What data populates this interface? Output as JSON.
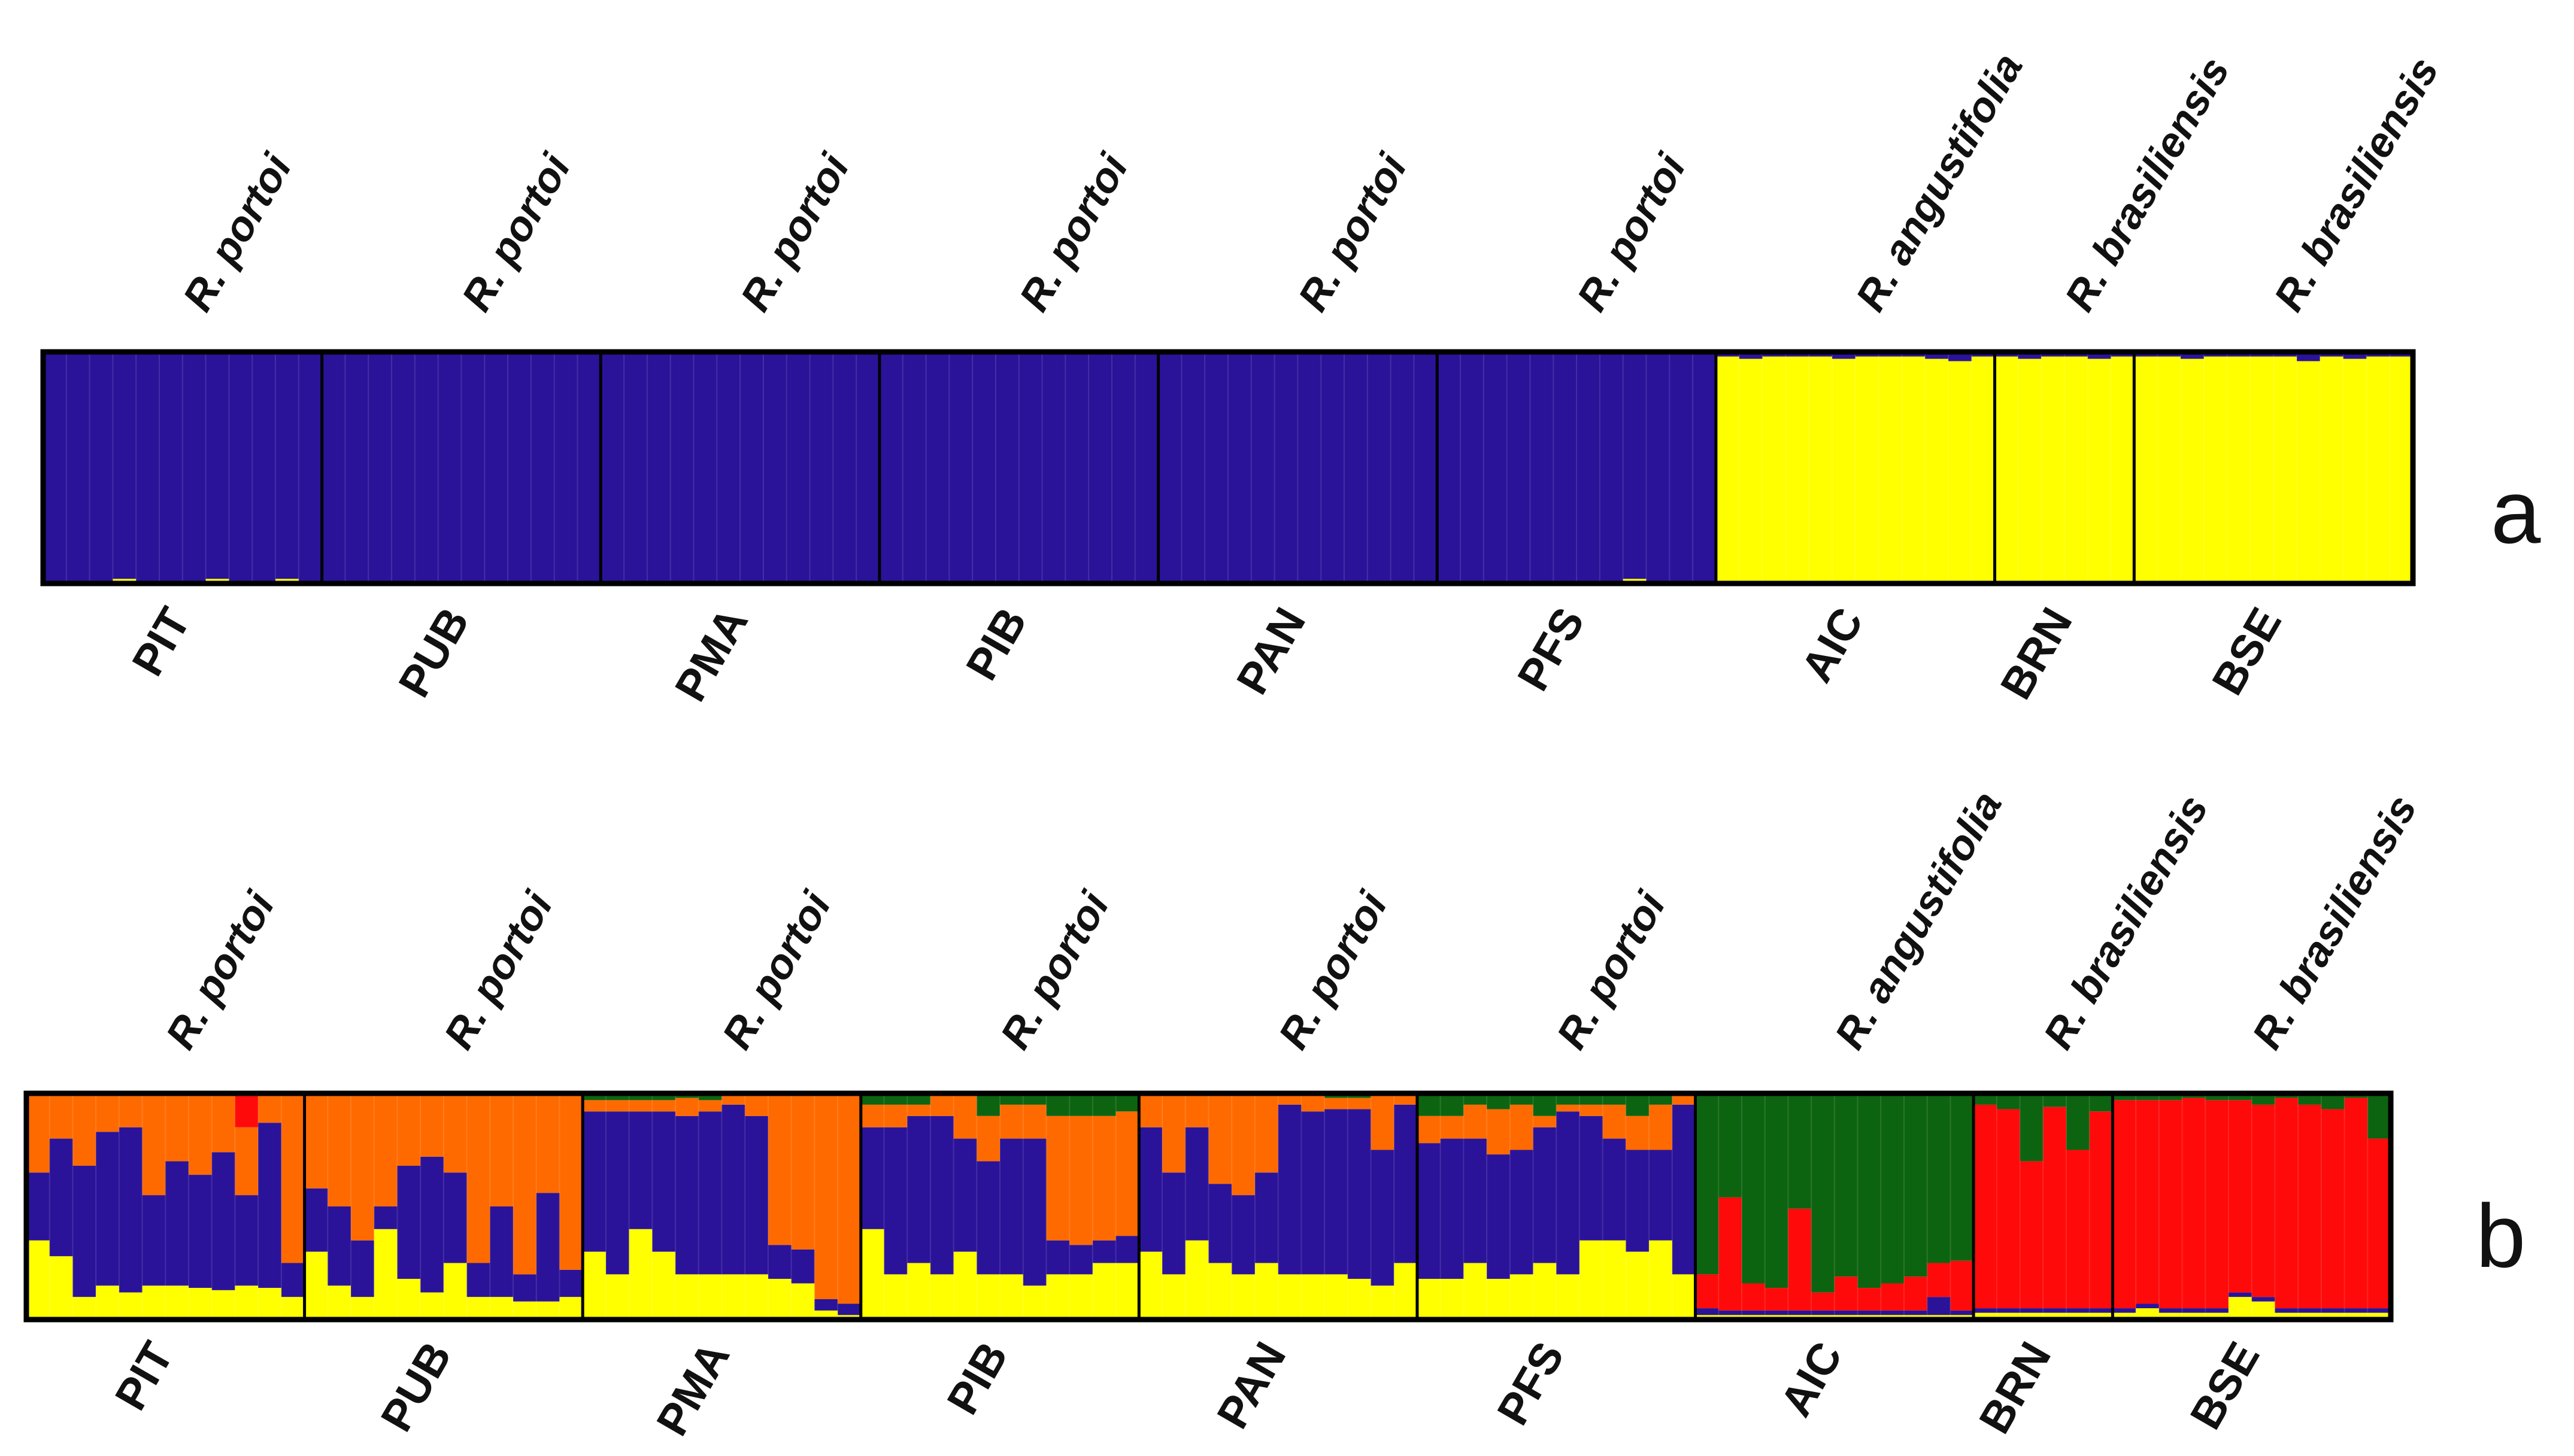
{
  "colors": {
    "blue": "#2a1399",
    "yellow": "#ffff00",
    "orange": "#ff6a00",
    "green": "#0d6410",
    "red": "#ff0a0a",
    "frame": "#000000",
    "text": "#111111"
  },
  "chart_data": [
    {
      "type": "bar",
      "subtype": "stacked-admixture",
      "panel_label": "a",
      "K": 2,
      "cluster_order": [
        "yellow",
        "blue"
      ],
      "y_range": [
        0,
        1
      ],
      "populations": [
        {
          "code": "PIT",
          "species": "R. portoi",
          "n": 12
        },
        {
          "code": "PUB",
          "species": "R. portoi",
          "n": 12
        },
        {
          "code": "PMA",
          "species": "R. portoi",
          "n": 12
        },
        {
          "code": "PIB",
          "species": "R. portoi",
          "n": 12
        },
        {
          "code": "PAN",
          "species": "R. portoi",
          "n": 12
        },
        {
          "code": "PFS",
          "species": "R. portoi",
          "n": 12
        },
        {
          "code": "AIC",
          "species": "R. angustifolia",
          "n": 12
        },
        {
          "code": "BRN",
          "species": "R. brasiliensis",
          "n": 6
        },
        {
          "code": "BSE",
          "species": "R. brasiliensis",
          "n": 12
        }
      ],
      "individuals": [
        [
          0.01,
          0.99
        ],
        [
          0.01,
          0.99
        ],
        [
          0.01,
          0.99
        ],
        [
          0.02,
          0.98
        ],
        [
          0.01,
          0.99
        ],
        [
          0.01,
          0.99
        ],
        [
          0.01,
          0.99
        ],
        [
          0.02,
          0.98
        ],
        [
          0.01,
          0.99
        ],
        [
          0.01,
          0.99
        ],
        [
          0.02,
          0.98
        ],
        [
          0.01,
          0.99
        ],
        [
          0.01,
          0.99
        ],
        [
          0.01,
          0.99
        ],
        [
          0.01,
          0.99
        ],
        [
          0.01,
          0.99
        ],
        [
          0.01,
          0.99
        ],
        [
          0.01,
          0.99
        ],
        [
          0.01,
          0.99
        ],
        [
          0.01,
          0.99
        ],
        [
          0.01,
          0.99
        ],
        [
          0.01,
          0.99
        ],
        [
          0.01,
          0.99
        ],
        [
          0.01,
          0.99
        ],
        [
          0.01,
          0.99
        ],
        [
          0.01,
          0.99
        ],
        [
          0.01,
          0.99
        ],
        [
          0.01,
          0.99
        ],
        [
          0.01,
          0.99
        ],
        [
          0.01,
          0.99
        ],
        [
          0.01,
          0.99
        ],
        [
          0.01,
          0.99
        ],
        [
          0.01,
          0.99
        ],
        [
          0.01,
          0.99
        ],
        [
          0.01,
          0.99
        ],
        [
          0.01,
          0.99
        ],
        [
          0.01,
          0.99
        ],
        [
          0.01,
          0.99
        ],
        [
          0.01,
          0.99
        ],
        [
          0.01,
          0.99
        ],
        [
          0.01,
          0.99
        ],
        [
          0.01,
          0.99
        ],
        [
          0.01,
          0.99
        ],
        [
          0.01,
          0.99
        ],
        [
          0.01,
          0.99
        ],
        [
          0.01,
          0.99
        ],
        [
          0.01,
          0.99
        ],
        [
          0.01,
          0.99
        ],
        [
          0.01,
          0.99
        ],
        [
          0.01,
          0.99
        ],
        [
          0.01,
          0.99
        ],
        [
          0.01,
          0.99
        ],
        [
          0.01,
          0.99
        ],
        [
          0.01,
          0.99
        ],
        [
          0.01,
          0.99
        ],
        [
          0.01,
          0.99
        ],
        [
          0.01,
          0.99
        ],
        [
          0.01,
          0.99
        ],
        [
          0.01,
          0.99
        ],
        [
          0.01,
          0.99
        ],
        [
          0.01,
          0.99
        ],
        [
          0.01,
          0.99
        ],
        [
          0.01,
          0.99
        ],
        [
          0.01,
          0.99
        ],
        [
          0.01,
          0.99
        ],
        [
          0.01,
          0.99
        ],
        [
          0.01,
          0.99
        ],
        [
          0.01,
          0.99
        ],
        [
          0.02,
          0.98
        ],
        [
          0.01,
          0.99
        ],
        [
          0.01,
          0.99
        ],
        [
          0.01,
          0.99
        ],
        [
          0.98,
          0.02
        ],
        [
          0.97,
          0.03
        ],
        [
          0.98,
          0.02
        ],
        [
          0.98,
          0.02
        ],
        [
          0.98,
          0.02
        ],
        [
          0.97,
          0.03
        ],
        [
          0.98,
          0.02
        ],
        [
          0.98,
          0.02
        ],
        [
          0.98,
          0.02
        ],
        [
          0.97,
          0.03
        ],
        [
          0.96,
          0.04
        ],
        [
          0.98,
          0.02
        ],
        [
          0.98,
          0.02
        ],
        [
          0.97,
          0.03
        ],
        [
          0.98,
          0.02
        ],
        [
          0.98,
          0.02
        ],
        [
          0.97,
          0.03
        ],
        [
          0.98,
          0.02
        ],
        [
          0.98,
          0.02
        ],
        [
          0.98,
          0.02
        ],
        [
          0.97,
          0.03
        ],
        [
          0.98,
          0.02
        ],
        [
          0.98,
          0.02
        ],
        [
          0.98,
          0.02
        ],
        [
          0.98,
          0.02
        ],
        [
          0.96,
          0.04
        ],
        [
          0.98,
          0.02
        ],
        [
          0.97,
          0.03
        ],
        [
          0.98,
          0.02
        ],
        [
          0.98,
          0.02
        ]
      ]
    },
    {
      "type": "bar",
      "subtype": "stacked-admixture",
      "panel_label": "b",
      "K": 5,
      "cluster_order": [
        "yellow",
        "blue",
        "orange",
        "red",
        "green"
      ],
      "y_range": [
        0,
        1
      ],
      "populations": [
        {
          "code": "PIT",
          "species": "R. portoi",
          "n": 12
        },
        {
          "code": "PUB",
          "species": "R. portoi",
          "n": 12
        },
        {
          "code": "PMA",
          "species": "R. portoi",
          "n": 12
        },
        {
          "code": "PIB",
          "species": "R. portoi",
          "n": 12
        },
        {
          "code": "PAN",
          "species": "R. portoi",
          "n": 12
        },
        {
          "code": "PFS",
          "species": "R. portoi",
          "n": 12
        },
        {
          "code": "AIC",
          "species": "R. angustifolia",
          "n": 12
        },
        {
          "code": "BRN",
          "species": "R. brasiliensis",
          "n": 6
        },
        {
          "code": "BSE",
          "species": "R. brasiliensis",
          "n": 12
        }
      ],
      "individuals": [
        [
          0.35,
          0.3,
          0.35,
          0,
          0
        ],
        [
          0.28,
          0.52,
          0.2,
          0,
          0
        ],
        [
          0.1,
          0.58,
          0.32,
          0,
          0
        ],
        [
          0.15,
          0.68,
          0.17,
          0,
          0
        ],
        [
          0.12,
          0.73,
          0.15,
          0,
          0
        ],
        [
          0.15,
          0.4,
          0.45,
          0,
          0
        ],
        [
          0.15,
          0.55,
          0.3,
          0,
          0
        ],
        [
          0.14,
          0.5,
          0.36,
          0,
          0
        ],
        [
          0.13,
          0.61,
          0.26,
          0,
          0
        ],
        [
          0.15,
          0.4,
          0.3,
          0.15,
          0
        ],
        [
          0.14,
          0.73,
          0.13,
          0,
          0
        ],
        [
          0.1,
          0.15,
          0.75,
          0,
          0
        ],
        [
          0.3,
          0.28,
          0.42,
          0,
          0
        ],
        [
          0.15,
          0.35,
          0.5,
          0,
          0
        ],
        [
          0.1,
          0.25,
          0.65,
          0,
          0
        ],
        [
          0.4,
          0.1,
          0.5,
          0,
          0
        ],
        [
          0.18,
          0.5,
          0.32,
          0,
          0
        ],
        [
          0.12,
          0.6,
          0.28,
          0,
          0
        ],
        [
          0.25,
          0.4,
          0.35,
          0,
          0
        ],
        [
          0.1,
          0.15,
          0.75,
          0,
          0
        ],
        [
          0.1,
          0.4,
          0.5,
          0,
          0
        ],
        [
          0.08,
          0.12,
          0.8,
          0,
          0
        ],
        [
          0.08,
          0.48,
          0.44,
          0,
          0
        ],
        [
          0.1,
          0.12,
          0.78,
          0,
          0
        ],
        [
          0.3,
          0.62,
          0.05,
          0,
          0.03
        ],
        [
          0.2,
          0.72,
          0.05,
          0,
          0.03
        ],
        [
          0.4,
          0.52,
          0.05,
          0,
          0.03
        ],
        [
          0.3,
          0.62,
          0.05,
          0,
          0.03
        ],
        [
          0.2,
          0.7,
          0.08,
          0,
          0.02
        ],
        [
          0.2,
          0.72,
          0.05,
          0,
          0.03
        ],
        [
          0.2,
          0.75,
          0.05,
          0,
          0
        ],
        [
          0.2,
          0.7,
          0.1,
          0,
          0
        ],
        [
          0.18,
          0.15,
          0.67,
          0,
          0
        ],
        [
          0.16,
          0.15,
          0.69,
          0,
          0
        ],
        [
          0.04,
          0.05,
          0.91,
          0,
          0
        ],
        [
          0.02,
          0.05,
          0.93,
          0,
          0
        ],
        [
          0.4,
          0.45,
          0.1,
          0,
          0.05
        ],
        [
          0.2,
          0.65,
          0.1,
          0,
          0.05
        ],
        [
          0.25,
          0.65,
          0.05,
          0,
          0.05
        ],
        [
          0.2,
          0.7,
          0.1,
          0,
          0
        ],
        [
          0.3,
          0.5,
          0.2,
          0,
          0
        ],
        [
          0.2,
          0.5,
          0.2,
          0,
          0.1
        ],
        [
          0.2,
          0.6,
          0.15,
          0,
          0.05
        ],
        [
          0.15,
          0.65,
          0.15,
          0,
          0.05
        ],
        [
          0.2,
          0.15,
          0.55,
          0,
          0.1
        ],
        [
          0.2,
          0.13,
          0.57,
          0,
          0.1
        ],
        [
          0.25,
          0.1,
          0.55,
          0,
          0.1
        ],
        [
          0.25,
          0.12,
          0.55,
          0,
          0.08
        ],
        [
          0.3,
          0.55,
          0.15,
          0,
          0
        ],
        [
          0.2,
          0.45,
          0.35,
          0,
          0
        ],
        [
          0.35,
          0.5,
          0.15,
          0,
          0
        ],
        [
          0.25,
          0.35,
          0.4,
          0,
          0
        ],
        [
          0.2,
          0.35,
          0.45,
          0,
          0
        ],
        [
          0.25,
          0.4,
          0.35,
          0,
          0
        ],
        [
          0.2,
          0.75,
          0.05,
          0,
          0
        ],
        [
          0.2,
          0.72,
          0.08,
          0,
          0
        ],
        [
          0.2,
          0.73,
          0.05,
          0,
          0.02
        ],
        [
          0.18,
          0.75,
          0.05,
          0,
          0.02
        ],
        [
          0.15,
          0.6,
          0.25,
          0,
          0
        ],
        [
          0.25,
          0.7,
          0.05,
          0,
          0
        ],
        [
          0.18,
          0.6,
          0.12,
          0,
          0.1
        ],
        [
          0.18,
          0.62,
          0.1,
          0,
          0.1
        ],
        [
          0.25,
          0.55,
          0.15,
          0,
          0.05
        ],
        [
          0.18,
          0.55,
          0.2,
          0,
          0.07
        ],
        [
          0.2,
          0.55,
          0.2,
          0,
          0.05
        ],
        [
          0.25,
          0.6,
          0.05,
          0,
          0.1
        ],
        [
          0.2,
          0.72,
          0.03,
          0,
          0.05
        ],
        [
          0.35,
          0.55,
          0.05,
          0,
          0.05
        ],
        [
          0.35,
          0.45,
          0.15,
          0,
          0.05
        ],
        [
          0.3,
          0.45,
          0.15,
          0,
          0.1
        ],
        [
          0.35,
          0.4,
          0.2,
          0,
          0.05
        ],
        [
          0.2,
          0.75,
          0.05,
          0,
          0
        ],
        [
          0.02,
          0.03,
          0,
          0.15,
          0.8
        ],
        [
          0.02,
          0.02,
          0,
          0.5,
          0.46
        ],
        [
          0.02,
          0.02,
          0,
          0.12,
          0.84
        ],
        [
          0.02,
          0.02,
          0,
          0.1,
          0.86
        ],
        [
          0.02,
          0.02,
          0,
          0.45,
          0.51
        ],
        [
          0.02,
          0.02,
          0,
          0.08,
          0.88
        ],
        [
          0.02,
          0.02,
          0,
          0.15,
          0.81
        ],
        [
          0.02,
          0.02,
          0,
          0.1,
          0.86
        ],
        [
          0.02,
          0.02,
          0,
          0.12,
          0.84
        ],
        [
          0.02,
          0.02,
          0,
          0.15,
          0.81
        ],
        [
          0.02,
          0.08,
          0,
          0.15,
          0.75
        ],
        [
          0.02,
          0.02,
          0,
          0.22,
          0.74
        ],
        [
          0.03,
          0.02,
          0,
          0.9,
          0.05
        ],
        [
          0.03,
          0.02,
          0,
          0.88,
          0.07
        ],
        [
          0.03,
          0.02,
          0,
          0.65,
          0.3
        ],
        [
          0.03,
          0.02,
          0,
          0.89,
          0.06
        ],
        [
          0.03,
          0.02,
          0,
          0.7,
          0.25
        ],
        [
          0.03,
          0.02,
          0,
          0.87,
          0.08
        ],
        [
          0.03,
          0.02,
          0,
          0.92,
          0.03
        ],
        [
          0.05,
          0.02,
          0,
          0.9,
          0.03
        ],
        [
          0.03,
          0.02,
          0,
          0.92,
          0.03
        ],
        [
          0.03,
          0.02,
          0,
          0.93,
          0.02
        ],
        [
          0.03,
          0.02,
          0,
          0.92,
          0.03
        ],
        [
          0.1,
          0.02,
          0,
          0.85,
          0.03
        ],
        [
          0.08,
          0.02,
          0,
          0.85,
          0.05
        ],
        [
          0.03,
          0.02,
          0,
          0.93,
          0.02
        ],
        [
          0.03,
          0.02,
          0,
          0.9,
          0.05
        ],
        [
          0.03,
          0.02,
          0,
          0.88,
          0.07
        ],
        [
          0.03,
          0.02,
          0,
          0.93,
          0.02
        ],
        [
          0.03,
          0.02,
          0,
          0.75,
          0.2
        ]
      ]
    }
  ]
}
